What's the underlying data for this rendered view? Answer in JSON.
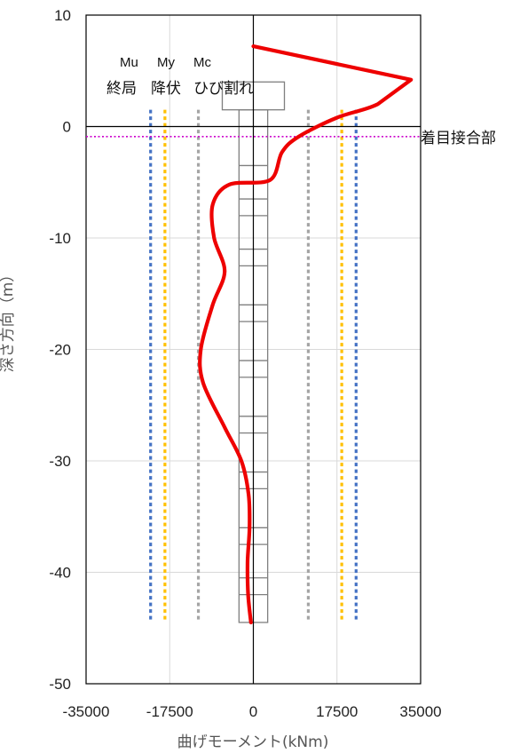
{
  "chart_data": {
    "type": "line",
    "title": "",
    "xlabel": "曲げモーメント(kNm)",
    "ylabel": "深さ方向（m）",
    "xlim": [
      -35000,
      35000
    ],
    "ylim": [
      -50,
      10
    ],
    "x_ticks": [
      {
        "value": -35000,
        "label": "-35000"
      },
      {
        "value": -17500,
        "label": "-17500"
      },
      {
        "value": 0,
        "label": "0"
      },
      {
        "value": 17500,
        "label": "17500"
      },
      {
        "value": 35000,
        "label": "35000"
      }
    ],
    "y_ticks": [
      {
        "value": 10,
        "label": "10"
      },
      {
        "value": 0,
        "label": "0"
      },
      {
        "value": -10,
        "label": "-10"
      },
      {
        "value": -20,
        "label": "-20"
      },
      {
        "value": -30,
        "label": "-30"
      },
      {
        "value": -40,
        "label": "-40"
      },
      {
        "value": -50,
        "label": "-50"
      }
    ],
    "grid": true,
    "moment_curve": {
      "color": "#ee0000",
      "points": [
        [
          0,
          7.2
        ],
        [
          33000,
          4.2
        ],
        [
          26000,
          2.0
        ],
        [
          17500,
          0.8
        ],
        [
          9500,
          -0.9
        ],
        [
          6000,
          -2.3
        ],
        [
          3500,
          -4.8
        ],
        [
          -5000,
          -5.2
        ],
        [
          -8500,
          -7.0
        ],
        [
          -8200,
          -10.0
        ],
        [
          -6000,
          -13.0
        ],
        [
          -8500,
          -16.0
        ],
        [
          -11000,
          -20.0
        ],
        [
          -10500,
          -23.0
        ],
        [
          -6000,
          -27.0
        ],
        [
          -2500,
          -30.0
        ],
        [
          -1000,
          -33.0
        ],
        [
          -800,
          -36.0
        ],
        [
          -1200,
          -39.0
        ],
        [
          -1100,
          -42.0
        ],
        [
          -500,
          -44.5
        ]
      ]
    },
    "limit_lines": [
      {
        "label_top": "Mu",
        "label_bottom": "終局",
        "value": 21500,
        "color": "#4472c4",
        "y_range": [
          -44.5,
          1.5
        ]
      },
      {
        "label_top": "My",
        "label_bottom": "降伏",
        "value": 18500,
        "color": "#ffc000",
        "y_range": [
          -44.5,
          1.5
        ]
      },
      {
        "label_top": "Mc",
        "label_bottom": "ひび割れ",
        "value": 11500,
        "color": "#a5a5a5",
        "y_range": [
          -44.5,
          1.5
        ]
      }
    ],
    "target_joint": {
      "label": "着目接合部",
      "depth": -0.9,
      "color": "#cc00cc"
    },
    "pile": {
      "color": "#7f7f7f",
      "cap": {
        "x_range": [
          -6500,
          6500
        ],
        "y_range": [
          1.5,
          4.0
        ]
      },
      "shaft": {
        "x_range": [
          -3000,
          3000
        ],
        "y_range": [
          -44.5,
          1.5
        ]
      },
      "segment_depths": [
        0.0,
        -3.5,
        -6.5,
        -8.0,
        -11.0,
        -12.5,
        -16.0,
        -17.5,
        -21.0,
        -22.5,
        -26.0,
        -27.5,
        -31.0,
        -32.5,
        -36.0,
        -37.5,
        -40.5,
        -42.0
      ]
    }
  }
}
